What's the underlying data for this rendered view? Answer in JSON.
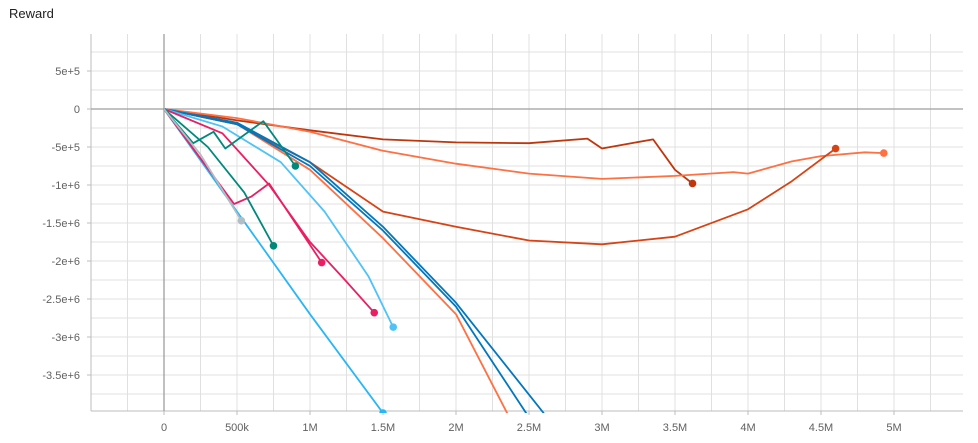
{
  "chart_data": {
    "type": "line",
    "title": "Reward",
    "xlabel": "",
    "ylabel": "",
    "xlim": [
      -500000,
      5500000
    ],
    "ylim": [
      -4000000,
      1000000
    ],
    "grid": true,
    "x_ticks": [
      {
        "value": 0,
        "label": "0"
      },
      {
        "value": 500000,
        "label": "500k"
      },
      {
        "value": 1000000,
        "label": "1M"
      },
      {
        "value": 1500000,
        "label": "1.5M"
      },
      {
        "value": 2000000,
        "label": "2M"
      },
      {
        "value": 2500000,
        "label": "2.5M"
      },
      {
        "value": 3000000,
        "label": "3M"
      },
      {
        "value": 3500000,
        "label": "3.5M"
      },
      {
        "value": 4000000,
        "label": "4M"
      },
      {
        "value": 4500000,
        "label": "4.5M"
      },
      {
        "value": 5000000,
        "label": "5M"
      }
    ],
    "y_ticks": [
      {
        "value": 500000,
        "label": "5e+5"
      },
      {
        "value": 0,
        "label": "0"
      },
      {
        "value": -500000,
        "label": "-5e+5"
      },
      {
        "value": -1000000,
        "label": "-1e+6"
      },
      {
        "value": -1500000,
        "label": "-1.5e+6"
      },
      {
        "value": -2000000,
        "label": "-2e+6"
      },
      {
        "value": -2500000,
        "label": "-2.5e+6"
      },
      {
        "value": -3000000,
        "label": "-3e+6"
      },
      {
        "value": -3500000,
        "label": "-3.5e+6"
      }
    ],
    "series": [
      {
        "color": "#bf360c",
        "end_marker": true,
        "points": [
          [
            0,
            0
          ],
          [
            500000,
            -150000
          ],
          [
            1000000,
            -280000
          ],
          [
            1500000,
            -400000
          ],
          [
            2000000,
            -440000
          ],
          [
            2500000,
            -450000
          ],
          [
            2900000,
            -390000
          ],
          [
            3000000,
            -520000
          ],
          [
            3200000,
            -450000
          ],
          [
            3350000,
            -400000
          ],
          [
            3500000,
            -800000
          ],
          [
            3620000,
            -980000
          ]
        ]
      },
      {
        "color": "#ff7043",
        "end_marker": true,
        "points": [
          [
            0,
            0
          ],
          [
            500000,
            -120000
          ],
          [
            1000000,
            -300000
          ],
          [
            1500000,
            -550000
          ],
          [
            2000000,
            -720000
          ],
          [
            2500000,
            -850000
          ],
          [
            3000000,
            -920000
          ],
          [
            3500000,
            -880000
          ],
          [
            3900000,
            -830000
          ],
          [
            4000000,
            -850000
          ],
          [
            4300000,
            -690000
          ],
          [
            4500000,
            -620000
          ],
          [
            4800000,
            -570000
          ],
          [
            4930000,
            -580000
          ]
        ]
      },
      {
        "color": "#d84315",
        "end_marker": true,
        "points": [
          [
            0,
            0
          ],
          [
            500000,
            -200000
          ],
          [
            1000000,
            -700000
          ],
          [
            1500000,
            -1350000
          ],
          [
            2000000,
            -1550000
          ],
          [
            2500000,
            -1730000
          ],
          [
            3000000,
            -1780000
          ],
          [
            3500000,
            -1680000
          ],
          [
            4000000,
            -1320000
          ],
          [
            4300000,
            -950000
          ],
          [
            4600000,
            -520000
          ]
        ]
      },
      {
        "color": "#ff7043",
        "end_marker": false,
        "points": [
          [
            0,
            0
          ],
          [
            500000,
            -200000
          ],
          [
            1000000,
            -800000
          ],
          [
            1500000,
            -1700000
          ],
          [
            2000000,
            -2700000
          ],
          [
            2350000,
            -4000000
          ]
        ]
      },
      {
        "color": "#0277bd",
        "end_marker": false,
        "points": [
          [
            0,
            0
          ],
          [
            500000,
            -200000
          ],
          [
            1000000,
            -750000
          ],
          [
            1500000,
            -1600000
          ],
          [
            2000000,
            -2600000
          ],
          [
            2480000,
            -4000000
          ]
        ]
      },
      {
        "color": "#0277bd",
        "end_marker": false,
        "points": [
          [
            0,
            0
          ],
          [
            500000,
            -180000
          ],
          [
            1000000,
            -700000
          ],
          [
            1500000,
            -1550000
          ],
          [
            2000000,
            -2550000
          ],
          [
            2600000,
            -4000000
          ]
        ]
      },
      {
        "color": "#4fc3f7",
        "end_marker": true,
        "points": [
          [
            0,
            0
          ],
          [
            400000,
            -230000
          ],
          [
            800000,
            -700000
          ],
          [
            1100000,
            -1350000
          ],
          [
            1400000,
            -2200000
          ],
          [
            1570000,
            -2870000
          ]
        ]
      },
      {
        "color": "#29b6f6",
        "end_marker": true,
        "points": [
          [
            0,
            0
          ],
          [
            500000,
            -1350000
          ],
          [
            1000000,
            -2700000
          ],
          [
            1500000,
            -4000000
          ]
        ]
      },
      {
        "color": "#e91e63",
        "end_marker": true,
        "points": [
          [
            0,
            0
          ],
          [
            400000,
            -320000
          ],
          [
            720000,
            -1000000
          ],
          [
            1000000,
            -1750000
          ],
          [
            1240000,
            -2250000
          ],
          [
            1440000,
            -2680000
          ]
        ]
      },
      {
        "color": "#e91e63",
        "end_marker": true,
        "points": [
          [
            0,
            0
          ],
          [
            480000,
            -1250000
          ],
          [
            600000,
            -1150000
          ],
          [
            720000,
            -980000
          ],
          [
            900000,
            -1500000
          ],
          [
            1080000,
            -2020000
          ]
        ]
      },
      {
        "color": "#00897b",
        "end_marker": true,
        "points": [
          [
            0,
            0
          ],
          [
            200000,
            -450000
          ],
          [
            340000,
            -300000
          ],
          [
            420000,
            -520000
          ],
          [
            680000,
            -160000
          ],
          [
            900000,
            -750000
          ]
        ]
      },
      {
        "color": "#00897b",
        "end_marker": true,
        "points": [
          [
            0,
            0
          ],
          [
            300000,
            -500000
          ],
          [
            550000,
            -1100000
          ],
          [
            750000,
            -1800000
          ]
        ]
      },
      {
        "color": "#b0bec5",
        "end_marker": true,
        "points": [
          [
            0,
            0
          ],
          [
            250000,
            -600000
          ],
          [
            530000,
            -1470000
          ]
        ]
      }
    ]
  }
}
